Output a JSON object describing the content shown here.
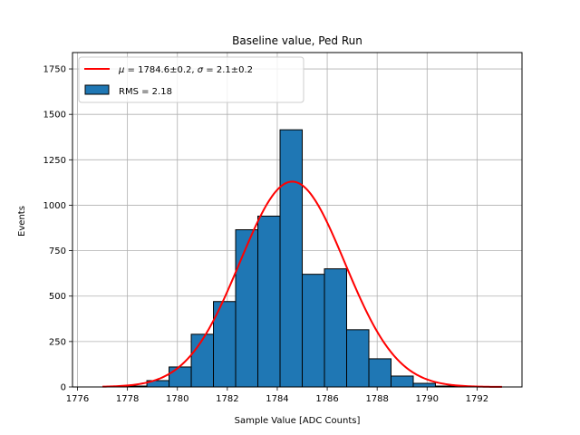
{
  "chart_data": {
    "type": "bar",
    "title": "Baseline value, Ped Run",
    "xlabel": "Sample Value [ADC Counts]",
    "ylabel": "Events",
    "xlim": [
      1775.8,
      1793.8
    ],
    "ylim": [
      0,
      1840
    ],
    "x_ticks": [
      1776,
      1778,
      1780,
      1782,
      1784,
      1786,
      1788,
      1790,
      1792
    ],
    "y_ticks": [
      0,
      250,
      500,
      750,
      1000,
      1250,
      1500,
      1750
    ],
    "grid": true,
    "legend_position": "upper left",
    "bin_width": 0.889,
    "histogram": {
      "bin_left_edges": [
        1777.0,
        1777.889,
        1778.778,
        1779.667,
        1780.556,
        1781.444,
        1782.333,
        1783.222,
        1784.111,
        1785.0,
        1785.889,
        1786.778,
        1787.667,
        1788.556,
        1789.444,
        1790.333,
        1791.222,
        1792.111
      ],
      "counts": [
        0,
        5,
        35,
        110,
        290,
        470,
        865,
        940,
        1415,
        620,
        650,
        315,
        155,
        60,
        20,
        5,
        0,
        0
      ],
      "color": "#1f77b4",
      "edge_color": "#000000",
      "label": "RMS = 2.18"
    },
    "fit": {
      "label": "μ = 1784.6±0.2, σ = 2.1±0.2",
      "label_parts": {
        "mu_symbol": "μ",
        "mu_text": " = 1784.6±0.2, ",
        "sigma_symbol": "σ",
        "sigma_text": " = 2.1±0.2"
      },
      "mu": 1784.6,
      "sigma": 2.1,
      "amplitude": 1130,
      "x_range": [
        1777.0,
        1793.0
      ],
      "color": "#ff0000"
    }
  }
}
